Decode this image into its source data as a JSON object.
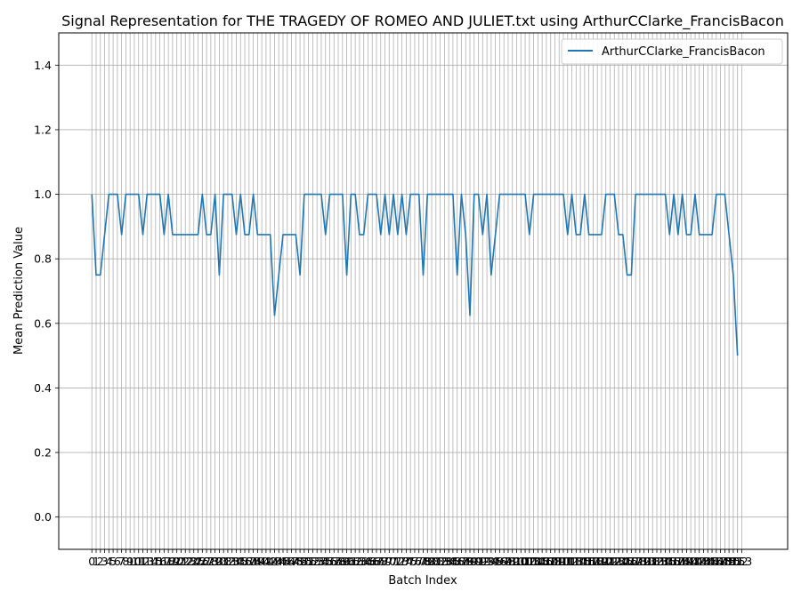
{
  "chart_data": {
    "type": "line",
    "title": "Signal Representation for THE TRAGEDY OF ROMEO AND JULIET.txt using ArthurCClarke_FrancisBacon",
    "xlabel": "Batch Index",
    "ylabel": "Mean Prediction Value",
    "xlim": [
      -7.8,
      163.8
    ],
    "ylim": [
      -0.1,
      1.5
    ],
    "yticks": [
      0.0,
      0.2,
      0.4,
      0.6,
      0.8,
      1.0,
      1.2,
      1.4
    ],
    "ytick_labels": [
      "0.0",
      "0.2",
      "0.4",
      "0.6",
      "0.8",
      "1.0",
      "1.2",
      "1.4"
    ],
    "x_first": 0,
    "x_last": 153,
    "grid": true,
    "legend_position": "top-right",
    "color": "#1f77b4",
    "series": [
      {
        "name": "ArthurCClarke_FrancisBacon",
        "values": [
          1.0,
          0.75,
          0.75,
          0.875,
          1.0,
          1.0,
          1.0,
          0.875,
          1.0,
          1.0,
          1.0,
          1.0,
          0.875,
          1.0,
          1.0,
          1.0,
          1.0,
          0.875,
          1.0,
          0.875,
          0.875,
          0.875,
          0.875,
          0.875,
          0.875,
          0.875,
          1.0,
          0.875,
          0.875,
          1.0,
          0.75,
          1.0,
          1.0,
          1.0,
          0.875,
          1.0,
          0.875,
          0.875,
          1.0,
          0.875,
          0.875,
          0.875,
          0.875,
          0.625,
          0.75,
          0.875,
          0.875,
          0.875,
          0.875,
          0.75,
          1.0,
          1.0,
          1.0,
          1.0,
          1.0,
          0.875,
          1.0,
          1.0,
          1.0,
          1.0,
          0.75,
          1.0,
          1.0,
          0.875,
          0.875,
          1.0,
          1.0,
          1.0,
          0.875,
          1.0,
          0.875,
          1.0,
          0.875,
          1.0,
          0.875,
          1.0,
          1.0,
          1.0,
          0.75,
          1.0,
          1.0,
          1.0,
          1.0,
          1.0,
          1.0,
          1.0,
          0.75,
          1.0,
          0.875,
          0.625,
          1.0,
          1.0,
          0.875,
          1.0,
          0.75,
          0.875,
          1.0,
          1.0,
          1.0,
          1.0,
          1.0,
          1.0,
          1.0,
          0.875,
          1.0,
          1.0,
          1.0,
          1.0,
          1.0,
          1.0,
          1.0,
          1.0,
          0.875,
          1.0,
          0.875,
          0.875,
          1.0,
          0.875,
          0.875,
          0.875,
          0.875,
          1.0,
          1.0,
          1.0,
          0.875,
          0.875,
          0.75,
          0.75,
          1.0,
          1.0,
          1.0,
          1.0,
          1.0,
          1.0,
          1.0,
          1.0,
          0.875,
          1.0,
          0.875,
          1.0,
          0.875,
          0.875,
          1.0,
          0.875,
          0.875,
          0.875,
          0.875,
          1.0,
          1.0,
          1.0,
          0.875,
          0.75,
          0.5
        ]
      }
    ]
  }
}
